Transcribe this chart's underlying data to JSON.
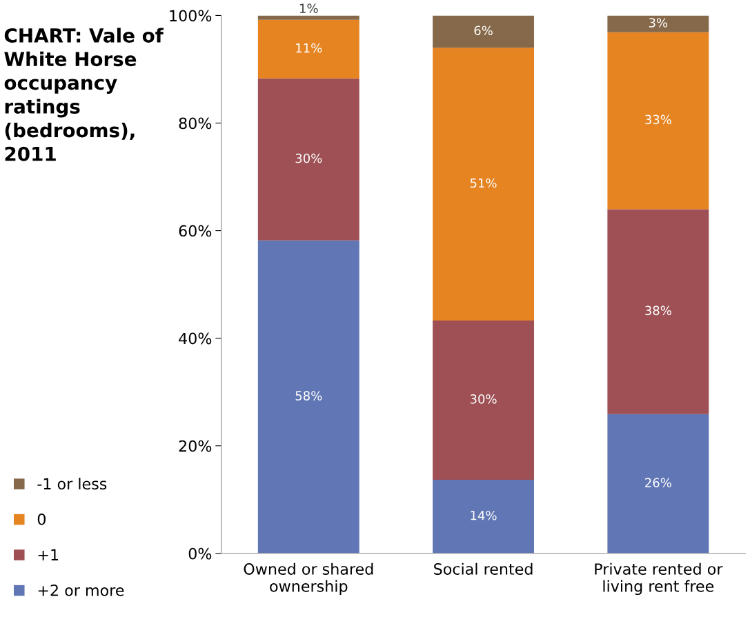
{
  "chart_data": {
    "type": "bar",
    "stacked": true,
    "title": "CHART: Vale of White Horse occupancy ratings (bedrooms), 2011",
    "categories": [
      "Owned or shared\nownership",
      "Social rented",
      "Private rented or\nliving rent free"
    ],
    "series": [
      {
        "name": "+2 or more",
        "color": "#6176b5",
        "values": [
          58.2,
          13.7,
          25.9
        ],
        "value_labels": [
          "58%",
          "14%",
          "26%"
        ]
      },
      {
        "name": "+1",
        "color": "#9e5055",
        "values": [
          30.1,
          29.6,
          38.1
        ],
        "value_labels": [
          "30%",
          "30%",
          "38%"
        ]
      },
      {
        "name": "0",
        "color": "#e68422",
        "values": [
          10.9,
          50.7,
          32.9
        ],
        "value_labels": [
          "11%",
          "51%",
          "33%"
        ]
      },
      {
        "name": "-1 or less",
        "color": "#85694a",
        "values": [
          0.8,
          6.0,
          3.1
        ],
        "value_labels": [
          "1%",
          "6%",
          "3%"
        ]
      }
    ],
    "ylim": [
      0,
      100
    ],
    "yticks": [
      {
        "value": 0,
        "label": "0%"
      },
      {
        "value": 20,
        "label": "20%"
      },
      {
        "value": 40,
        "label": "40%"
      },
      {
        "value": 60,
        "label": "60%"
      },
      {
        "value": 80,
        "label": "80%"
      },
      {
        "value": 100,
        "label": "100%"
      }
    ],
    "legend": "left",
    "grid": false
  }
}
